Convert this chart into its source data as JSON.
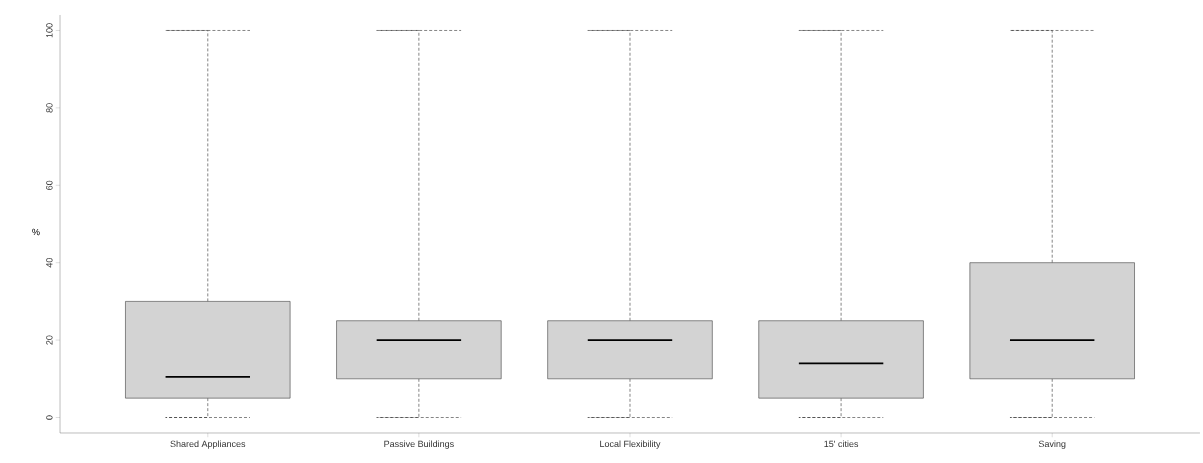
{
  "chart_data": {
    "type": "box",
    "ylabel": "%",
    "categories": [
      "Shared Appliances",
      "Passive Buildings",
      "Local Flexibility",
      "15' cities",
      "Saving"
    ],
    "series": [
      {
        "color": "#d3d3d3",
        "boxes": [
          {
            "low": 0,
            "q1": 5,
            "median": 10.5,
            "q3": 30,
            "high": 100
          },
          {
            "low": 0,
            "q1": 10,
            "median": 20,
            "q3": 25,
            "high": 100
          },
          {
            "low": 0,
            "q1": 10,
            "median": 20,
            "q3": 25,
            "high": 100
          },
          {
            "low": 0,
            "q1": 5,
            "median": 14,
            "q3": 25,
            "high": 100
          },
          {
            "low": 0,
            "q1": 10,
            "median": 20,
            "q3": 40,
            "high": 100
          }
        ]
      }
    ],
    "ylim": [
      -4,
      104
    ],
    "yticks": [
      0,
      20,
      40,
      60,
      80,
      100
    ]
  }
}
